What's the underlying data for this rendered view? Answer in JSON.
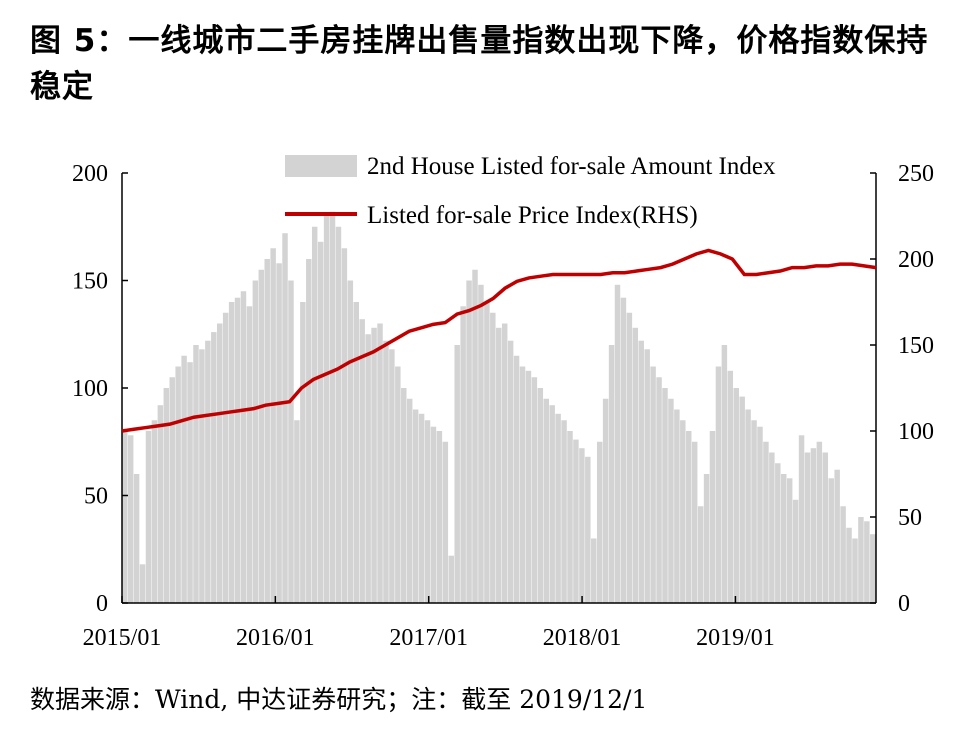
{
  "title": "图 5：一线城市二手房挂牌出售量指数出现下降，价格指数保持稳定",
  "source": "数据来源：Wind, 中达证券研究；注：截至 2019/12/1",
  "chart_data": {
    "type": "bar",
    "x_tick_labels": [
      "2015/01",
      "2016/01",
      "2017/01",
      "2018/01",
      "2019/01"
    ],
    "x_range": [
      "2015/01",
      "2019/12"
    ],
    "left_axis": {
      "ylim": [
        0,
        200
      ],
      "ticks": [
        0,
        50,
        100,
        150,
        200
      ]
    },
    "right_axis": {
      "ylim": [
        0,
        250
      ],
      "ticks": [
        0,
        50,
        100,
        150,
        200,
        250
      ]
    },
    "legend_placement": "top",
    "series": [
      {
        "name": "2nd House Listed for-sale Amount Index",
        "type": "bar",
        "axis": "left",
        "color": "#d3d3d3",
        "values": [
          80,
          78,
          60,
          18,
          80,
          85,
          92,
          100,
          105,
          110,
          115,
          112,
          120,
          118,
          122,
          126,
          130,
          135,
          140,
          142,
          145,
          138,
          150,
          155,
          160,
          165,
          158,
          172,
          150,
          85,
          140,
          160,
          175,
          168,
          180,
          182,
          175,
          165,
          150,
          140,
          132,
          125,
          128,
          130,
          122,
          118,
          110,
          100,
          95,
          90,
          88,
          85,
          82,
          80,
          75,
          22,
          120,
          138,
          150,
          155,
          148,
          140,
          135,
          128,
          130,
          122,
          115,
          110,
          108,
          105,
          100,
          95,
          92,
          88,
          85,
          80,
          76,
          72,
          68,
          30,
          75,
          95,
          120,
          148,
          142,
          135,
          128,
          122,
          118,
          110,
          105,
          100,
          95,
          90,
          85,
          80,
          75,
          45,
          60,
          80,
          110,
          120,
          108,
          100,
          96,
          90,
          85,
          82,
          75,
          70,
          65,
          60,
          58,
          48,
          78,
          70,
          72,
          75,
          70,
          58,
          62,
          45,
          35,
          30,
          40,
          38,
          32
        ]
      },
      {
        "name": "Listed for-sale Price Index(RHS)",
        "type": "line",
        "axis": "right",
        "color": "#c00000",
        "values": [
          100,
          101,
          102,
          103,
          104,
          106,
          108,
          109,
          110,
          111,
          112,
          113,
          115,
          116,
          117,
          125,
          130,
          133,
          136,
          140,
          143,
          146,
          150,
          154,
          158,
          160,
          162,
          163,
          168,
          170,
          173,
          177,
          183,
          187,
          189,
          190,
          191,
          191,
          191,
          191,
          191,
          192,
          192,
          193,
          194,
          195,
          197,
          200,
          203,
          205,
          203,
          200,
          191,
          191,
          192,
          193,
          195,
          195,
          196,
          196,
          197,
          197,
          196,
          195
        ]
      }
    ]
  }
}
